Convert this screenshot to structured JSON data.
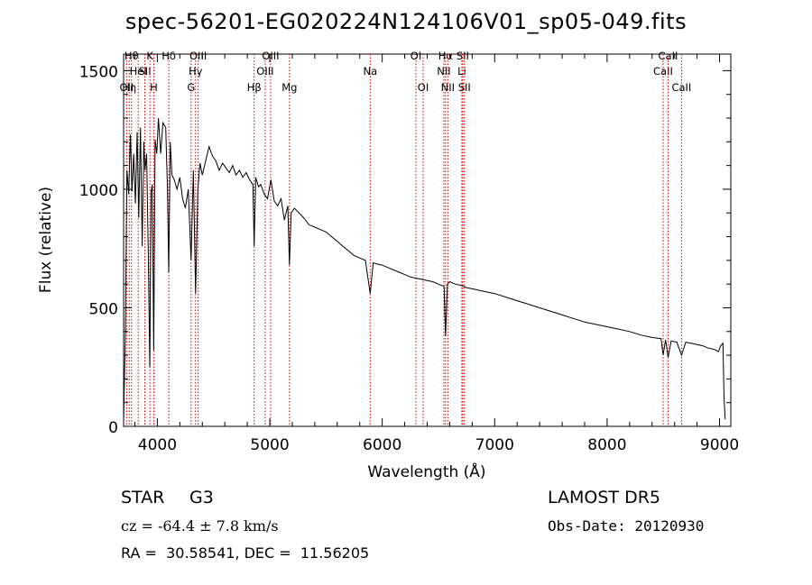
{
  "title": "spec-56201-EG020224N124106V01_sp05-049.fits",
  "chart_data": {
    "type": "line",
    "xlabel": "Wavelength (Å)",
    "ylabel": "Flux (relative)",
    "xlim": [
      3700,
      9100
    ],
    "ylim": [
      0,
      1570
    ],
    "xticks": [
      4000,
      5000,
      6000,
      7000,
      8000,
      9000
    ],
    "yticks": [
      0,
      500,
      1000,
      1500
    ],
    "grid": false,
    "line_color": "#000000",
    "marker_color": "#cc0000",
    "series": [
      {
        "x": [
          3700,
          3715,
          3730,
          3745,
          3760,
          3775,
          3790,
          3805,
          3820,
          3835,
          3850,
          3865,
          3880,
          3890,
          3905,
          3920,
          3933,
          3945,
          3955,
          3968,
          3980,
          3995,
          4010,
          4030,
          4050,
          4075,
          4090,
          4101,
          4115,
          4130,
          4150,
          4175,
          4200,
          4225,
          4250,
          4275,
          4300,
          4320,
          4340,
          4360,
          4380,
          4400,
          4430,
          4460,
          4490,
          4520,
          4550,
          4580,
          4610,
          4640,
          4670,
          4700,
          4730,
          4760,
          4790,
          4820,
          4850,
          4861,
          4875,
          4900,
          4920,
          4950,
          4980,
          5010,
          5040,
          5070,
          5100,
          5130,
          5160,
          5175,
          5190,
          5220,
          5260,
          5300,
          5350,
          5400,
          5450,
          5500,
          5550,
          5600,
          5650,
          5700,
          5750,
          5800,
          5850,
          5893,
          5920,
          5950,
          6000,
          6050,
          6100,
          6150,
          6200,
          6250,
          6300,
          6350,
          6400,
          6450,
          6500,
          6550,
          6563,
          6580,
          6600,
          6650,
          6700,
          6750,
          6800,
          6900,
          7000,
          7100,
          7200,
          7300,
          7400,
          7500,
          7600,
          7700,
          7800,
          7900,
          8000,
          8100,
          8200,
          8300,
          8400,
          8480,
          8498,
          8520,
          8542,
          8570,
          8620,
          8662,
          8700,
          8750,
          8800,
          8850,
          8900,
          8950,
          8990,
          9010,
          9030,
          9040,
          9050
        ],
        "y": [
          20,
          380,
          1080,
          980,
          1230,
          990,
          1150,
          940,
          1240,
          880,
          1260,
          760,
          1200,
          1080,
          1150,
          720,
          250,
          990,
          1020,
          320,
          1210,
          1150,
          1300,
          1150,
          1280,
          1260,
          1000,
          650,
          1200,
          1060,
          1040,
          1000,
          1050,
          960,
          920,
          1000,
          700,
          1080,
          560,
          1000,
          1110,
          1060,
          1120,
          1180,
          1140,
          1120,
          1080,
          1110,
          1090,
          1070,
          1100,
          1060,
          1080,
          1050,
          1070,
          1040,
          1020,
          760,
          1050,
          1010,
          1020,
          980,
          960,
          1040,
          950,
          930,
          960,
          870,
          930,
          680,
          900,
          920,
          900,
          880,
          850,
          840,
          830,
          820,
          800,
          780,
          760,
          740,
          720,
          710,
          700,
          560,
          690,
          685,
          680,
          670,
          660,
          650,
          640,
          630,
          625,
          620,
          615,
          610,
          600,
          590,
          380,
          600,
          610,
          600,
          595,
          585,
          580,
          570,
          560,
          545,
          530,
          515,
          500,
          485,
          470,
          455,
          440,
          430,
          420,
          410,
          400,
          385,
          375,
          370,
          300,
          365,
          290,
          360,
          355,
          300,
          355,
          350,
          345,
          340,
          330,
          325,
          315,
          340,
          350,
          120,
          30
        ]
      }
    ],
    "line_markers": [
      {
        "wavelength": 3727,
        "label": "OII",
        "row": 2
      },
      {
        "wavelength": 3750,
        "label": "Hη",
        "row": 2
      },
      {
        "wavelength": 3770,
        "label": "Hθ",
        "row": 0
      },
      {
        "wavelength": 3830,
        "label": "HeI",
        "row": 1
      },
      {
        "wavelength": 3889,
        "label": "SII",
        "row": 1
      },
      {
        "wavelength": 3934,
        "label": "K",
        "row": 0
      },
      {
        "wavelength": 3968,
        "label": "H",
        "row": 2
      },
      {
        "wavelength": 4102,
        "label": "Hδ",
        "row": 0
      },
      {
        "wavelength": 4300,
        "label": "G",
        "row": 2
      },
      {
        "wavelength": 4340,
        "label": "Hγ",
        "row": 1
      },
      {
        "wavelength": 4363,
        "label": "OIII",
        "row": 0
      },
      {
        "wavelength": 4861,
        "label": "Hβ",
        "row": 2
      },
      {
        "wavelength": 4959,
        "label": "OIII",
        "row": 1
      },
      {
        "wavelength": 5007,
        "label": "OIII",
        "row": 0
      },
      {
        "wavelength": 5175,
        "label": "Mg",
        "row": 2
      },
      {
        "wavelength": 5893,
        "label": "Na",
        "row": 1
      },
      {
        "wavelength": 6300,
        "label": "OI",
        "row": 0
      },
      {
        "wavelength": 6364,
        "label": "OI",
        "row": 2
      },
      {
        "wavelength": 6548,
        "label": "NII",
        "row": 1
      },
      {
        "wavelength": 6563,
        "label": "Hα",
        "row": 0
      },
      {
        "wavelength": 6583,
        "label": "NII",
        "row": 2
      },
      {
        "wavelength": 6708,
        "label": "Li",
        "row": 1
      },
      {
        "wavelength": 6716,
        "label": "SII",
        "row": 0
      },
      {
        "wavelength": 6731,
        "label": "SII",
        "row": 2
      },
      {
        "wavelength": 8498,
        "label": "CaII",
        "row": 1
      },
      {
        "wavelength": 8542,
        "label": "CaII",
        "row": 0
      },
      {
        "wavelength": 8662,
        "label": "CaII",
        "row": 2
      }
    ]
  },
  "info": {
    "object_class": "STAR",
    "subclass": "G3",
    "survey": "LAMOST DR5",
    "redshift": "cz = -64.4 ± 7.8 km/s",
    "obs_date": "Obs-Date: 20120930",
    "coords": "RA =  30.58541, DEC =  11.56205"
  }
}
